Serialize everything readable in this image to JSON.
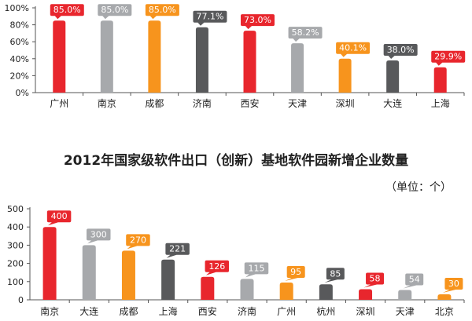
{
  "colors": {
    "red": "#E8262D",
    "gray": "#A7A9AC",
    "orange": "#F7941D",
    "dark": "#58595B",
    "axis": "#555555"
  },
  "chart_data": [
    {
      "type": "bar",
      "title": "",
      "categories": [
        "广州",
        "南京",
        "成都",
        "济南",
        "西安",
        "天津",
        "深圳",
        "大连",
        "上海"
      ],
      "values": [
        85.0,
        85.0,
        85.0,
        77.1,
        73.0,
        58.2,
        40.1,
        38.0,
        29.9
      ],
      "value_labels": [
        "85.0%",
        "85.0%",
        "85.0%",
        "77.1%",
        "73.0%",
        "58.2%",
        "40.1%",
        "38.0%",
        "29.9%"
      ],
      "colors": [
        "red",
        "gray",
        "orange",
        "dark",
        "red",
        "gray",
        "orange",
        "dark",
        "red"
      ],
      "yticks": [
        "0%",
        "20%",
        "40%",
        "60%",
        "80%",
        "100%"
      ],
      "ylim": [
        0,
        100
      ],
      "grid": false,
      "legend": "none"
    },
    {
      "type": "bar",
      "title": "2012年国家级软件出口（创新）基地软件园新增企业数量",
      "unit": "（单位：个）",
      "categories": [
        "南京",
        "大连",
        "成都",
        "上海",
        "西安",
        "济南",
        "广州",
        "杭州",
        "深圳",
        "天津",
        "北京"
      ],
      "values": [
        400,
        300,
        270,
        221,
        126,
        115,
        95,
        85,
        58,
        54,
        30
      ],
      "value_labels": [
        "400",
        "300",
        "270",
        "221",
        "126",
        "115",
        "95",
        "85",
        "58",
        "54",
        "30"
      ],
      "colors": [
        "red",
        "gray",
        "orange",
        "dark",
        "red",
        "gray",
        "orange",
        "dark",
        "red",
        "gray",
        "orange"
      ],
      "yticks": [
        "0",
        "100",
        "200",
        "300",
        "400",
        "500"
      ],
      "ylim": [
        0,
        500
      ],
      "grid": false,
      "legend": "none"
    }
  ]
}
